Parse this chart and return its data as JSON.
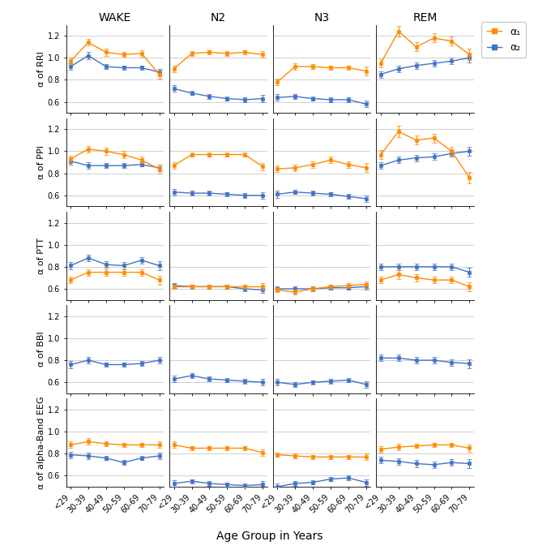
{
  "stages": [
    "WAKE",
    "N2",
    "N3",
    "REM"
  ],
  "age_groups": [
    "<29",
    "30-39",
    "40-49",
    "50-59",
    "60-69",
    "70-79"
  ],
  "metrics": [
    "RRI",
    "PPI",
    "PTT",
    "BBI",
    "alpha-Band EEG"
  ],
  "ylabels": [
    "α of RRI",
    "α of PPI",
    "α of PTT",
    "α of BBI",
    "α of alpha-Band EEG"
  ],
  "alpha1_color": "#FF8C00",
  "alpha2_color": "#4472C4",
  "data": {
    "RRI": {
      "WAKE": {
        "a1": [
          0.97,
          1.14,
          1.05,
          1.03,
          1.04,
          0.85
        ],
        "a1e": [
          0.03,
          0.03,
          0.03,
          0.02,
          0.03,
          0.04
        ],
        "a2": [
          0.92,
          1.02,
          0.92,
          0.91,
          0.91,
          0.87
        ],
        "a2e": [
          0.03,
          0.03,
          0.02,
          0.02,
          0.02,
          0.03
        ]
      },
      "N2": {
        "a1": [
          0.9,
          1.04,
          1.05,
          1.04,
          1.05,
          1.03
        ],
        "a1e": [
          0.03,
          0.02,
          0.02,
          0.02,
          0.02,
          0.03
        ],
        "a2": [
          0.72,
          0.68,
          0.65,
          0.63,
          0.62,
          0.63
        ],
        "a2e": [
          0.03,
          0.02,
          0.02,
          0.02,
          0.02,
          0.03
        ]
      },
      "N3": {
        "a1": [
          0.78,
          0.92,
          0.92,
          0.91,
          0.91,
          0.88
        ],
        "a1e": [
          0.03,
          0.03,
          0.02,
          0.02,
          0.02,
          0.04
        ],
        "a2": [
          0.64,
          0.65,
          0.63,
          0.62,
          0.62,
          0.58
        ],
        "a2e": [
          0.03,
          0.02,
          0.02,
          0.02,
          0.02,
          0.03
        ]
      },
      "REM": {
        "a1": [
          0.95,
          1.24,
          1.1,
          1.18,
          1.15,
          1.03
        ],
        "a1e": [
          0.04,
          0.05,
          0.04,
          0.04,
          0.04,
          0.05
        ],
        "a2": [
          0.85,
          0.9,
          0.93,
          0.95,
          0.97,
          1.0
        ],
        "a2e": [
          0.03,
          0.03,
          0.03,
          0.03,
          0.03,
          0.04
        ]
      }
    },
    "PPI": {
      "WAKE": {
        "a1": [
          0.93,
          1.02,
          1.0,
          0.97,
          0.92,
          0.84
        ],
        "a1e": [
          0.03,
          0.03,
          0.03,
          0.03,
          0.03,
          0.04
        ],
        "a2": [
          0.91,
          0.87,
          0.87,
          0.87,
          0.88,
          0.85
        ],
        "a2e": [
          0.03,
          0.03,
          0.02,
          0.02,
          0.02,
          0.03
        ]
      },
      "N2": {
        "a1": [
          0.87,
          0.97,
          0.97,
          0.97,
          0.97,
          0.86
        ],
        "a1e": [
          0.03,
          0.02,
          0.02,
          0.02,
          0.02,
          0.03
        ],
        "a2": [
          0.63,
          0.62,
          0.62,
          0.61,
          0.6,
          0.6
        ],
        "a2e": [
          0.03,
          0.02,
          0.02,
          0.02,
          0.02,
          0.03
        ]
      },
      "N3": {
        "a1": [
          0.84,
          0.85,
          0.88,
          0.92,
          0.88,
          0.85
        ],
        "a1e": [
          0.03,
          0.03,
          0.03,
          0.03,
          0.03,
          0.04
        ],
        "a2": [
          0.61,
          0.63,
          0.62,
          0.61,
          0.59,
          0.57
        ],
        "a2e": [
          0.03,
          0.02,
          0.02,
          0.02,
          0.02,
          0.03
        ]
      },
      "REM": {
        "a1": [
          0.97,
          1.18,
          1.1,
          1.12,
          1.0,
          0.76
        ],
        "a1e": [
          0.04,
          0.05,
          0.04,
          0.04,
          0.04,
          0.05
        ],
        "a2": [
          0.87,
          0.92,
          0.94,
          0.95,
          0.98,
          1.0
        ],
        "a2e": [
          0.03,
          0.03,
          0.03,
          0.03,
          0.03,
          0.04
        ]
      }
    },
    "PTT": {
      "WAKE": {
        "a1": [
          0.68,
          0.75,
          0.75,
          0.75,
          0.75,
          0.68
        ],
        "a1e": [
          0.03,
          0.03,
          0.03,
          0.03,
          0.03,
          0.04
        ],
        "a2": [
          0.81,
          0.88,
          0.82,
          0.81,
          0.86,
          0.81
        ],
        "a2e": [
          0.03,
          0.03,
          0.03,
          0.03,
          0.03,
          0.04
        ]
      },
      "N2": {
        "a1": [
          0.62,
          0.62,
          0.62,
          0.62,
          0.62,
          0.62
        ],
        "a1e": [
          0.02,
          0.02,
          0.02,
          0.02,
          0.02,
          0.03
        ],
        "a2": [
          0.63,
          0.62,
          0.62,
          0.62,
          0.6,
          0.59
        ],
        "a2e": [
          0.02,
          0.02,
          0.02,
          0.02,
          0.02,
          0.03
        ]
      },
      "N3": {
        "a1": [
          0.59,
          0.57,
          0.6,
          0.62,
          0.63,
          0.64
        ],
        "a1e": [
          0.02,
          0.02,
          0.02,
          0.02,
          0.02,
          0.03
        ],
        "a2": [
          0.6,
          0.6,
          0.6,
          0.61,
          0.61,
          0.62
        ],
        "a2e": [
          0.02,
          0.02,
          0.02,
          0.02,
          0.02,
          0.03
        ]
      },
      "REM": {
        "a1": [
          0.68,
          0.73,
          0.7,
          0.68,
          0.68,
          0.62
        ],
        "a1e": [
          0.03,
          0.04,
          0.03,
          0.03,
          0.03,
          0.04
        ],
        "a2": [
          0.8,
          0.8,
          0.8,
          0.8,
          0.8,
          0.75
        ],
        "a2e": [
          0.03,
          0.03,
          0.03,
          0.03,
          0.03,
          0.04
        ]
      }
    },
    "BBI": {
      "WAKE": {
        "a1": [
          null,
          null,
          null,
          null,
          null,
          null
        ],
        "a1e": [
          null,
          null,
          null,
          null,
          null,
          null
        ],
        "a2": [
          0.76,
          0.8,
          0.76,
          0.76,
          0.77,
          0.8
        ],
        "a2e": [
          0.03,
          0.03,
          0.02,
          0.02,
          0.02,
          0.03
        ]
      },
      "N2": {
        "a1": [
          null,
          null,
          null,
          null,
          null,
          null
        ],
        "a1e": [
          null,
          null,
          null,
          null,
          null,
          null
        ],
        "a2": [
          0.63,
          0.66,
          0.63,
          0.62,
          0.61,
          0.6
        ],
        "a2e": [
          0.03,
          0.02,
          0.02,
          0.02,
          0.02,
          0.03
        ]
      },
      "N3": {
        "a1": [
          null,
          null,
          null,
          null,
          null,
          null
        ],
        "a1e": [
          null,
          null,
          null,
          null,
          null,
          null
        ],
        "a2": [
          0.6,
          0.58,
          0.6,
          0.61,
          0.62,
          0.58
        ],
        "a2e": [
          0.03,
          0.02,
          0.02,
          0.02,
          0.02,
          0.03
        ]
      },
      "REM": {
        "a1": [
          null,
          null,
          null,
          null,
          null,
          null
        ],
        "a1e": [
          null,
          null,
          null,
          null,
          null,
          null
        ],
        "a2": [
          0.82,
          0.82,
          0.8,
          0.8,
          0.78,
          0.77
        ],
        "a2e": [
          0.03,
          0.03,
          0.03,
          0.03,
          0.03,
          0.04
        ]
      }
    },
    "alpha-Band EEG": {
      "WAKE": {
        "a1": [
          0.88,
          0.91,
          0.89,
          0.88,
          0.88,
          0.88
        ],
        "a1e": [
          0.03,
          0.03,
          0.02,
          0.02,
          0.02,
          0.03
        ],
        "a2": [
          0.79,
          0.78,
          0.76,
          0.72,
          0.76,
          0.78
        ],
        "a2e": [
          0.03,
          0.03,
          0.02,
          0.02,
          0.02,
          0.03
        ]
      },
      "N2": {
        "a1": [
          0.88,
          0.85,
          0.85,
          0.85,
          0.85,
          0.81
        ],
        "a1e": [
          0.03,
          0.02,
          0.02,
          0.02,
          0.02,
          0.03
        ],
        "a2": [
          0.53,
          0.55,
          0.53,
          0.52,
          0.51,
          0.52
        ],
        "a2e": [
          0.03,
          0.02,
          0.02,
          0.02,
          0.02,
          0.03
        ]
      },
      "N3": {
        "a1": [
          0.79,
          0.78,
          0.77,
          0.77,
          0.77,
          0.77
        ],
        "a1e": [
          0.02,
          0.02,
          0.02,
          0.02,
          0.02,
          0.03
        ],
        "a2": [
          0.5,
          0.53,
          0.54,
          0.57,
          0.58,
          0.54
        ],
        "a2e": [
          0.03,
          0.02,
          0.02,
          0.02,
          0.02,
          0.03
        ]
      },
      "REM": {
        "a1": [
          0.84,
          0.86,
          0.87,
          0.88,
          0.88,
          0.85
        ],
        "a1e": [
          0.03,
          0.03,
          0.02,
          0.02,
          0.02,
          0.03
        ],
        "a2": [
          0.74,
          0.73,
          0.71,
          0.7,
          0.72,
          0.71
        ],
        "a2e": [
          0.03,
          0.03,
          0.03,
          0.03,
          0.03,
          0.04
        ]
      }
    }
  },
  "ylims": [
    0.5,
    1.3
  ],
  "yticks": [
    0.6,
    0.8,
    1.0,
    1.2
  ],
  "legend_labels": [
    "α₁",
    "α₂"
  ],
  "xlabel": "Age Group in Years",
  "title_fontsize": 10,
  "ylabel_fontsize": 8,
  "tick_fontsize": 7,
  "legend_fontsize": 9
}
